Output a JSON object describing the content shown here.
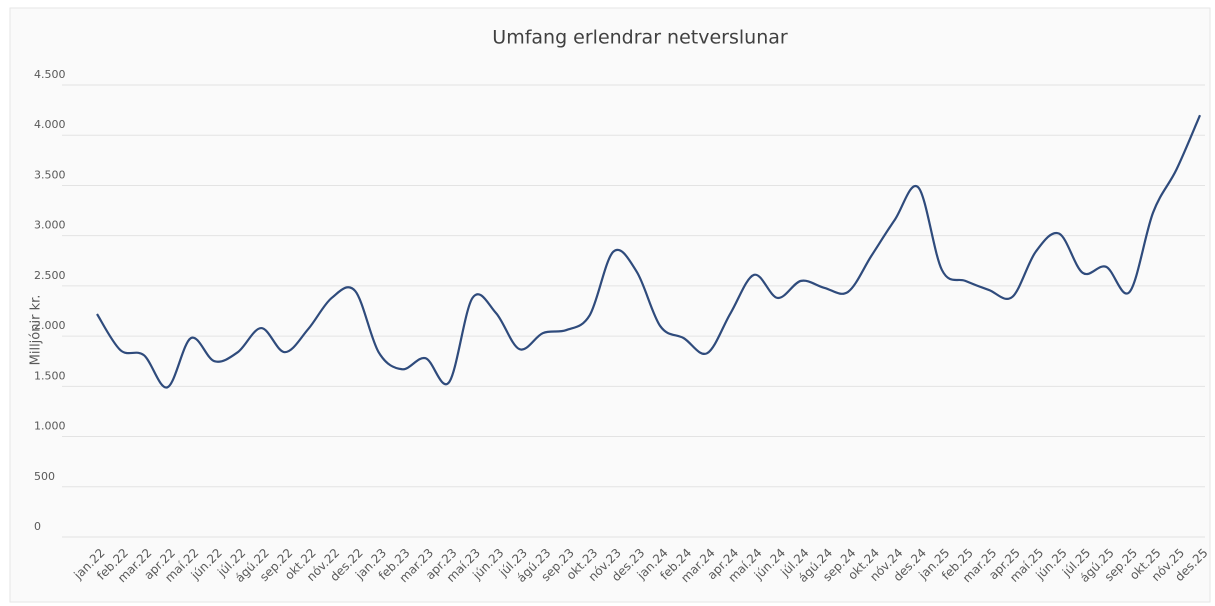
{
  "chart_data": {
    "type": "line",
    "title": "Umfang erlendrar netverslunar",
    "y_label": "Milljónir kr.",
    "categories": [
      "jan.22",
      "feb.22",
      "mar.22",
      "apr.22",
      "maí.22",
      "jún.22",
      "júl.22",
      "ágú.22",
      "sep.22",
      "okt.22",
      "nóv.22",
      "des.22",
      "jan.23",
      "feb.23",
      "mar.23",
      "apr.23",
      "maí.23",
      "jún.23",
      "júl.23",
      "ágú.23",
      "sep.23",
      "okt.23",
      "nóv.23",
      "des.23",
      "jan.24",
      "feb.24",
      "mar.24",
      "apr.24",
      "maí.24",
      "jún.24",
      "júl.24",
      "ágú.24",
      "sep.24",
      "okt.24",
      "nóv.24",
      "des.24",
      "jan.25",
      "feb.25",
      "mar.25",
      "apr.25",
      "maí.25",
      "jún.25",
      "júl.25",
      "ágú.25",
      "sep.25",
      "okt.25",
      "nóv.25",
      "des.25"
    ],
    "series": [
      {
        "name": "Umfang",
        "color": "#2f4b7c",
        "values": [
          2220,
          1860,
          1810,
          1490,
          1980,
          1750,
          1840,
          2080,
          1840,
          2070,
          2380,
          2450,
          1840,
          1670,
          1780,
          1540,
          2380,
          2230,
          1870,
          2030,
          2060,
          2210,
          2840,
          2640,
          2100,
          1980,
          1830,
          2230,
          2610,
          2380,
          2550,
          2480,
          2440,
          2800,
          3160,
          3480,
          2660,
          2550,
          2460,
          2390,
          2840,
          3020,
          2630,
          2690,
          2440,
          3230,
          3660,
          4200
        ]
      }
    ],
    "ylim": [
      0,
      4500
    ],
    "yticks": [
      0,
      500,
      {
        "value": 1000,
        "label": "1.000"
      },
      {
        "value": 1500,
        "label": "1.500"
      },
      {
        "value": 2000,
        "label": "2.000"
      },
      {
        "value": 2500,
        "label": "2.500"
      },
      {
        "value": 3000,
        "label": "3.000"
      },
      {
        "value": 3500,
        "label": "3.500"
      },
      {
        "value": 4000,
        "label": "4.000"
      },
      {
        "value": 4500,
        "label": "4.500"
      }
    ],
    "grid": true
  }
}
